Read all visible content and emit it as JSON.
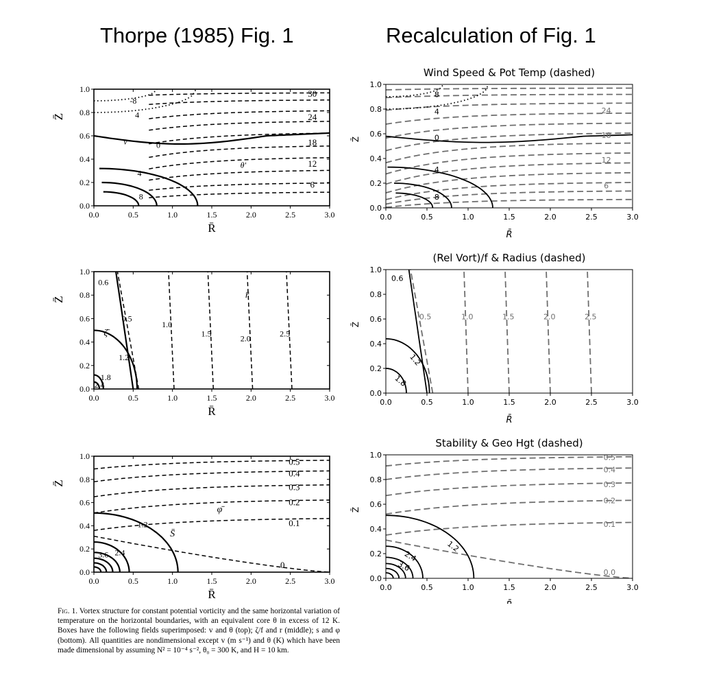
{
  "titles": {
    "left": "Thorpe (1985) Fig. 1",
    "right": "Recalculation of  Fig. 1"
  },
  "caption": {
    "lead": "Fig. 1.",
    "body": "Vortex structure for constant potential vorticity and the same horizontal variation of temperature on the horizontal boundaries, with an equivalent core θ in excess of 12 K. Boxes have the following fields superimposed: v and θ (top); ζ/f and r (middle); s and φ (bottom). All quantities are nondimensional except v (m s⁻¹) and θ (K) which have been made dimensional by assuming N² = 10⁻⁴ s⁻², θ₀ = 300 K, and H = 10 km."
  },
  "colors": {
    "solid": "#000000",
    "dashed_orig": "#000000",
    "dashed_recalc": "#6e6e6e"
  },
  "chart_data": [
    {
      "id": "orig-top",
      "type": "contour",
      "title": "",
      "xlabel": "R̄",
      "ylabel": "Z̄",
      "xlim": [
        0,
        3
      ],
      "ylim": [
        0,
        1
      ],
      "xticks": [
        "0.0",
        "0.5",
        "1.0",
        "1.5",
        "2.0",
        "2.5",
        "3.0"
      ],
      "yticks": [
        "0.0",
        "0.2",
        "0.4",
        "0.6",
        "0.8",
        "1.0"
      ],
      "annotations": [
        "v",
        "θ'"
      ],
      "series": [
        {
          "name": "v",
          "style": "solid",
          "levels": [
            0,
            4,
            8
          ]
        },
        {
          "name": "v",
          "style": "dotted",
          "levels": [
            -4,
            -8
          ]
        },
        {
          "name": "θ",
          "style": "dashed",
          "levels": [
            6,
            12,
            18,
            24,
            30
          ]
        }
      ]
    },
    {
      "id": "orig-mid",
      "type": "contour",
      "title": "",
      "xlabel": "R̄",
      "ylabel": "Z̄",
      "xlim": [
        0,
        3
      ],
      "ylim": [
        0,
        1
      ],
      "xticks": [
        "0.0",
        "0.5",
        "1.0",
        "1.5",
        "2.0",
        "2.5",
        "3.0"
      ],
      "yticks": [
        "0.0",
        "0.2",
        "0.4",
        "0.6",
        "0.8",
        "1.0"
      ],
      "annotations": [
        "ζ̄",
        "r̄"
      ],
      "series": [
        {
          "name": "ζ/f",
          "style": "solid",
          "levels": [
            0.6,
            1.2,
            1.8,
            2.4
          ]
        },
        {
          "name": "r",
          "style": "dashed",
          "levels": [
            0.5,
            1.0,
            1.5,
            2.0,
            2.5
          ]
        }
      ]
    },
    {
      "id": "orig-bot",
      "type": "contour",
      "title": "",
      "xlabel": "R̄",
      "ylabel": "Z̄",
      "xlim": [
        0,
        3
      ],
      "ylim": [
        0,
        1
      ],
      "xticks": [
        "0.0",
        "0.5",
        "1.0",
        "1.5",
        "2.0",
        "2.5",
        "3.0"
      ],
      "yticks": [
        "0.0",
        "0.2",
        "0.4",
        "0.6",
        "0.8",
        "1.0"
      ],
      "annotations": [
        "φ̄",
        "S̄"
      ],
      "series": [
        {
          "name": "s",
          "style": "solid",
          "levels": [
            1.2,
            2.4,
            3.6
          ]
        },
        {
          "name": "φ",
          "style": "dashed",
          "levels": [
            0,
            0.1,
            0.2,
            0.3,
            0.4,
            0.5
          ]
        }
      ]
    },
    {
      "id": "rec-top",
      "type": "contour",
      "title": "Wind Speed & Pot Temp (dashed)",
      "xlabel": "R̄",
      "ylabel": "Z̄",
      "xlim": [
        0,
        3
      ],
      "ylim": [
        0,
        1
      ],
      "xticks": [
        "0.0",
        "0.5",
        "1.0",
        "1.5",
        "2.0",
        "2.5",
        "3.0"
      ],
      "yticks": [
        "0.0",
        "0.2",
        "0.4",
        "0.6",
        "0.8",
        "1.0"
      ],
      "series": [
        {
          "name": "v",
          "style": "solid",
          "levels": [
            0,
            4,
            8
          ]
        },
        {
          "name": "v",
          "style": "dotted",
          "levels": [
            -4,
            -8
          ]
        },
        {
          "name": "θ",
          "style": "dashed",
          "levels": [
            6,
            12,
            18,
            24
          ]
        }
      ]
    },
    {
      "id": "rec-mid",
      "type": "contour",
      "title": "(Rel Vort)/f & Radius (dashed)",
      "xlabel": "R̄",
      "ylabel": "Z̄",
      "xlim": [
        0,
        3
      ],
      "ylim": [
        0,
        1
      ],
      "xticks": [
        "0.0",
        "0.5",
        "1.0",
        "1.5",
        "2.0",
        "2.5",
        "3.0"
      ],
      "yticks": [
        "0.0",
        "0.2",
        "0.4",
        "0.6",
        "0.8",
        "1.0"
      ],
      "series": [
        {
          "name": "ζ/f",
          "style": "solid",
          "levels": [
            0.6,
            1.2,
            1.8
          ]
        },
        {
          "name": "r",
          "style": "dashed",
          "levels": [
            0.5,
            1.0,
            1.5,
            2.0,
            2.5
          ]
        }
      ]
    },
    {
      "id": "rec-bot",
      "type": "contour",
      "title": "Stability & Geo Hgt (dashed)",
      "xlabel": "R̄",
      "ylabel": "Z̄",
      "xlim": [
        0,
        3
      ],
      "ylim": [
        0,
        1
      ],
      "xticks": [
        "0.0",
        "0.5",
        "1.0",
        "1.5",
        "2.0",
        "2.5",
        "3.0"
      ],
      "yticks": [
        "0.0",
        "0.2",
        "0.4",
        "0.6",
        "0.8",
        "1.0"
      ],
      "series": [
        {
          "name": "s",
          "style": "solid",
          "levels": [
            1.2,
            2.4,
            3.6
          ]
        },
        {
          "name": "φ",
          "style": "dashed",
          "levels": [
            0.0,
            0.1,
            0.2,
            0.3,
            0.4,
            0.5
          ]
        }
      ]
    }
  ]
}
